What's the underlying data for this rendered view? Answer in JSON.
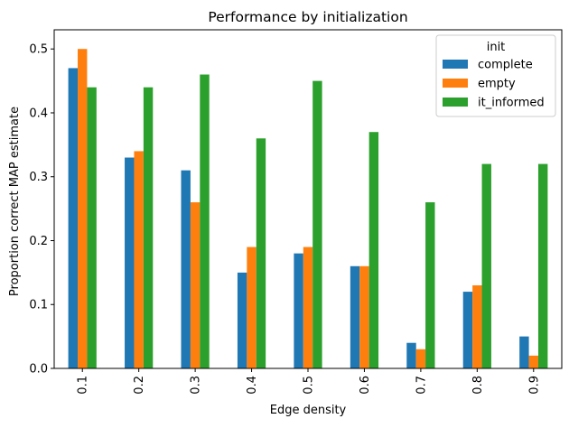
{
  "chart_data": {
    "type": "bar",
    "title": "Performance by initialization",
    "xlabel": "Edge density",
    "ylabel": "Proportion correct MAP estimate",
    "categories": [
      "0.1",
      "0.2",
      "0.3",
      "0.4",
      "0.5",
      "0.6",
      "0.7",
      "0.8",
      "0.9"
    ],
    "series": [
      {
        "name": "complete",
        "color": "#1f77b4",
        "values": [
          0.47,
          0.33,
          0.31,
          0.15,
          0.18,
          0.16,
          0.04,
          0.12,
          0.05
        ]
      },
      {
        "name": "empty",
        "color": "#ff7f0e",
        "values": [
          0.5,
          0.34,
          0.26,
          0.19,
          0.19,
          0.16,
          0.03,
          0.13,
          0.02
        ]
      },
      {
        "name": "it_informed",
        "color": "#2ca02c",
        "values": [
          0.44,
          0.44,
          0.46,
          0.36,
          0.45,
          0.37,
          0.26,
          0.32,
          0.32
        ]
      }
    ],
    "ylim": [
      0,
      0.53
    ],
    "yticks": [
      0.0,
      0.1,
      0.2,
      0.3,
      0.4,
      0.5
    ],
    "ytick_labels": [
      "0.0",
      "0.1",
      "0.2",
      "0.3",
      "0.4",
      "0.5"
    ],
    "grid": false,
    "legend": {
      "title": "init",
      "placement": "top-right"
    },
    "xtick_rotation": "vertical"
  }
}
